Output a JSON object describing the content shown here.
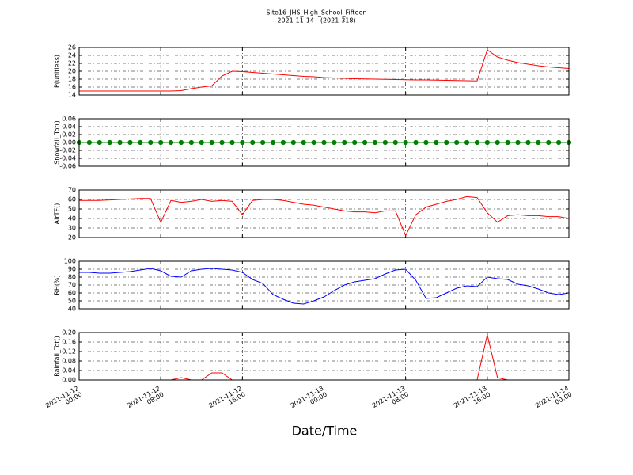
{
  "title": "Site16_JHS_High_School_Fifteen",
  "subtitle": "2021-11-14 - (2021-318)",
  "xlabel": "Date/Time",
  "xlim": [
    "2021-11-12 00:00",
    "2021-11-14 00:00"
  ],
  "xticks": [
    "2021-11-12 00:00",
    "2021-11-12 08:00",
    "2021-11-12 16:00",
    "2021-11-13 00:00",
    "2021-11-13 08:00",
    "2021-11-13 16:00",
    "2021-11-14 00:00"
  ],
  "x": [
    "2021-11-12 00:00",
    "2021-11-12 01:00",
    "2021-11-12 02:00",
    "2021-11-12 03:00",
    "2021-11-12 04:00",
    "2021-11-12 05:00",
    "2021-11-12 06:00",
    "2021-11-12 07:00",
    "2021-11-12 08:00",
    "2021-11-12 09:00",
    "2021-11-12 10:00",
    "2021-11-12 11:00",
    "2021-11-12 12:00",
    "2021-11-12 13:00",
    "2021-11-12 14:00",
    "2021-11-12 15:00",
    "2021-11-12 16:00",
    "2021-11-12 17:00",
    "2021-11-12 18:00",
    "2021-11-12 19:00",
    "2021-11-12 20:00",
    "2021-11-12 21:00",
    "2021-11-12 22:00",
    "2021-11-12 23:00",
    "2021-11-13 00:00",
    "2021-11-13 01:00",
    "2021-11-13 02:00",
    "2021-11-13 03:00",
    "2021-11-13 04:00",
    "2021-11-13 05:00",
    "2021-11-13 06:00",
    "2021-11-13 07:00",
    "2021-11-13 08:00",
    "2021-11-13 09:00",
    "2021-11-13 10:00",
    "2021-11-13 11:00",
    "2021-11-13 12:00",
    "2021-11-13 13:00",
    "2021-11-13 14:00",
    "2021-11-13 15:00",
    "2021-11-13 16:00",
    "2021-11-13 17:00",
    "2021-11-13 18:00",
    "2021-11-13 19:00",
    "2021-11-13 20:00",
    "2021-11-13 21:00",
    "2021-11-13 22:00",
    "2021-11-13 23:00",
    "2021-11-14 00:00"
  ],
  "chart_data": [
    {
      "type": "line",
      "ylabel": "P(unitless)",
      "ylim": [
        14,
        26
      ],
      "yticks": [
        14,
        16,
        18,
        20,
        22,
        24,
        26
      ],
      "grid": true,
      "series": [
        {
          "color": "#ff0000",
          "values": [
            15,
            15,
            15,
            15,
            15,
            15,
            15,
            15,
            15,
            15,
            15.1,
            15.6,
            16,
            16.3,
            18.8,
            20,
            19.9,
            19.7,
            19.5,
            19.3,
            19.1,
            18.9,
            18.7,
            18.6,
            18.4,
            18.3,
            18.2,
            18.1,
            18.05,
            18,
            17.95,
            17.9,
            17.85,
            17.8,
            17.8,
            17.75,
            17.7,
            17.65,
            17.6,
            17.55,
            25.4,
            23.6,
            22.8,
            22.2,
            21.8,
            21.4,
            21.1,
            20.9,
            20.7
          ]
        }
      ]
    },
    {
      "type": "line",
      "ylabel": "Snowfall_Tot()",
      "ylim": [
        -0.06,
        0.06
      ],
      "yticks": [
        -0.06,
        -0.04,
        -0.02,
        {
          "value": 0,
          "label": "0.00"
        },
        0.02,
        0.04,
        0.06
      ],
      "grid": true,
      "series": [
        {
          "color": "#008000",
          "marker": true,
          "values": [
            0,
            0,
            0,
            0,
            0,
            0,
            0,
            0,
            0,
            0,
            0,
            0,
            0,
            0,
            0,
            0,
            0,
            0,
            0,
            0,
            0,
            0,
            0,
            0,
            0,
            0,
            0,
            0,
            0,
            0,
            0,
            0,
            0,
            0,
            0,
            0,
            0,
            0,
            0,
            0,
            0,
            0,
            0,
            0,
            0,
            0,
            0,
            0,
            0
          ]
        }
      ]
    },
    {
      "type": "line",
      "ylabel": "AirTF()",
      "ylim": [
        20,
        70
      ],
      "yticks": [
        20,
        30,
        40,
        50,
        60,
        70
      ],
      "grid": true,
      "series": [
        {
          "color": "#ff0000",
          "values": [
            59,
            59,
            59,
            59.5,
            60,
            60.5,
            61,
            61,
            36,
            59,
            57,
            58,
            60,
            58,
            59,
            58,
            44,
            59,
            60,
            60,
            59,
            57,
            55,
            54,
            52,
            50,
            48,
            47,
            47,
            46,
            48,
            48,
            22,
            44,
            52,
            55,
            58,
            60,
            63,
            62,
            46,
            36,
            43,
            44,
            43,
            43,
            42,
            42,
            40
          ]
        }
      ]
    },
    {
      "type": "line",
      "ylabel": "RH(%)",
      "ylim": [
        40,
        100
      ],
      "yticks": [
        40,
        50,
        60,
        70,
        80,
        90,
        100
      ],
      "grid": true,
      "series": [
        {
          "color": "#0000ff",
          "values": [
            86,
            86,
            85,
            85,
            86,
            87,
            89,
            91,
            88,
            81,
            80,
            88,
            90,
            91,
            90,
            89,
            86,
            77,
            72,
            58,
            52,
            47,
            46,
            50,
            55,
            63,
            70,
            74,
            76,
            78,
            84,
            89,
            90,
            76,
            53,
            54,
            60,
            66,
            69,
            68,
            80,
            78,
            77,
            71,
            69,
            65,
            60,
            58,
            60
          ]
        }
      ]
    },
    {
      "type": "line",
      "ylabel": "Rainfall_Tot()",
      "ylim": [
        0,
        0.2
      ],
      "yticks": [
        {
          "value": 0,
          "label": "0.00"
        },
        0.04,
        0.08,
        0.12,
        0.16,
        {
          "value": 0.2,
          "label": "0.20"
        }
      ],
      "grid": true,
      "series": [
        {
          "color": "#ff0000",
          "values": [
            0,
            0,
            0,
            0,
            0,
            0,
            0,
            0,
            0,
            0,
            0.01,
            0,
            0,
            0.03,
            0.03,
            0,
            0,
            0,
            0,
            0,
            0,
            0,
            0,
            0,
            0,
            0,
            0,
            0,
            0,
            0,
            0,
            0,
            0,
            0,
            0,
            0,
            0,
            0,
            0,
            0,
            0.19,
            0.01,
            0,
            0,
            0,
            0,
            0,
            0,
            0
          ]
        }
      ]
    }
  ]
}
